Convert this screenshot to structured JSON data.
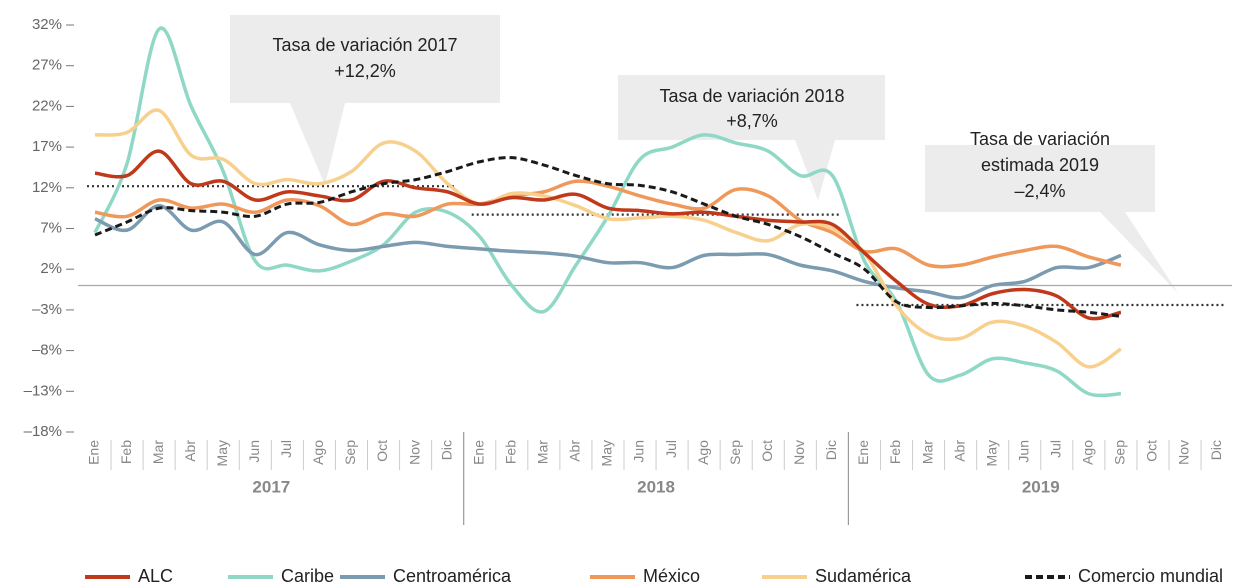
{
  "chart_data": {
    "type": "line",
    "categories": [
      "Ene",
      "Feb",
      "Mar",
      "Abr",
      "May",
      "Jun",
      "Jul",
      "Ago",
      "Sep",
      "Oct",
      "Nov",
      "Dic",
      "Ene",
      "Feb",
      "Mar",
      "Abr",
      "May",
      "Jun",
      "Jul",
      "Ago",
      "Sep",
      "Oct",
      "Nov",
      "Dic",
      "Ene",
      "Feb",
      "Mar",
      "Abr",
      "May",
      "Jun",
      "Jul",
      "Ago",
      "Sep",
      "Oct",
      "Nov",
      "Dic"
    ],
    "years": [
      "2017",
      "2018",
      "2019"
    ],
    "ylim": [
      -18,
      32
    ],
    "yticks": [
      {
        "value": 32,
        "label": "32%"
      },
      {
        "value": 27,
        "label": "27%"
      },
      {
        "value": 22,
        "label": "22%"
      },
      {
        "value": 17,
        "label": "17%"
      },
      {
        "value": 12,
        "label": "12%"
      },
      {
        "value": 7,
        "label": "7%"
      },
      {
        "value": 2,
        "label": "2%"
      },
      {
        "value": -3,
        "label": "–3%"
      },
      {
        "value": -8,
        "label": "–8%"
      },
      {
        "value": -13,
        "label": "–13%"
      },
      {
        "value": -18,
        "label": "–18%"
      }
    ],
    "series": [
      {
        "name": "ALC",
        "color": "#c0391b",
        "values": [
          13.8,
          13.5,
          16.5,
          12.5,
          12.8,
          10.5,
          11.5,
          11,
          10.5,
          12.8,
          12,
          11.5,
          10,
          10.8,
          10.5,
          11.2,
          9.5,
          9.2,
          8.8,
          9,
          8.5,
          8,
          7.8,
          7.5,
          4,
          0.5,
          -2.3,
          -2.5,
          -1,
          -0.5,
          -1.3,
          -4,
          -3.3,
          null,
          null,
          null
        ]
      },
      {
        "name": "Caribe",
        "color": "#8fd8c6",
        "values": [
          6.5,
          15,
          31.5,
          22,
          14,
          3,
          2.5,
          1.8,
          3,
          5,
          9,
          9,
          6,
          0,
          -3.2,
          2.5,
          8.5,
          15.5,
          17,
          18.5,
          17.5,
          16.5,
          13.5,
          13.5,
          3,
          -2,
          -11,
          -11,
          -9,
          -9.5,
          -10.5,
          -13.3,
          -13.3,
          null,
          null,
          null
        ]
      },
      {
        "name": "Centroamérica",
        "color": "#7b9bb0",
        "values": [
          8.2,
          6.8,
          9.8,
          6.8,
          7.8,
          3.8,
          6.5,
          5,
          4.3,
          4.8,
          5.3,
          4.8,
          4.5,
          4.2,
          4,
          3.6,
          2.8,
          2.8,
          2.2,
          3.7,
          3.8,
          3.8,
          2.5,
          1.8,
          0.5,
          -0.3,
          -0.8,
          -1.5,
          0,
          0.5,
          2.2,
          2.2,
          3.7,
          null,
          null,
          null
        ]
      },
      {
        "name": "México",
        "color": "#f0985a",
        "values": [
          9,
          8.5,
          10.5,
          9.5,
          10,
          9,
          10.5,
          9.8,
          7.5,
          8.8,
          8.5,
          10,
          10,
          11,
          11.5,
          12.8,
          12.2,
          11,
          10,
          9.5,
          11.8,
          11,
          8,
          6.5,
          4.2,
          4.5,
          2.5,
          2.5,
          3.5,
          4.3,
          4.8,
          3.5,
          2.5,
          null,
          null,
          null
        ]
      },
      {
        "name": "Sudamérica",
        "color": "#f7d08e",
        "values": [
          18.5,
          18.8,
          21.5,
          16,
          15.5,
          12.5,
          13,
          12.5,
          14,
          17.5,
          16.5,
          12.5,
          10,
          11.3,
          11,
          9.8,
          8.2,
          8.3,
          8.5,
          8,
          6.5,
          5.5,
          7.5,
          7,
          4,
          -2.5,
          -6,
          -6.5,
          -4.5,
          -5,
          -7,
          -10,
          -7.8,
          null,
          null,
          null
        ]
      },
      {
        "name": "Comercio mundial",
        "color": "#1a1a1a",
        "dashed": true,
        "values": [
          6.2,
          7.8,
          9.5,
          9.2,
          9,
          8.5,
          10,
          10.2,
          11.5,
          12.5,
          13,
          14,
          15.2,
          15.7,
          14.8,
          13.5,
          12.5,
          12.3,
          11.5,
          10,
          8.5,
          7.5,
          6,
          4,
          2,
          -2,
          -2.7,
          -2.5,
          -2.2,
          -2.5,
          -3,
          -3.3,
          -3.8,
          null,
          null,
          null
        ]
      }
    ],
    "annotations": [
      {
        "lines": [
          "Tasa de variación 2017",
          "+12,2%"
        ],
        "value": 12.2,
        "from": 0,
        "to": 11
      },
      {
        "lines": [
          "Tasa de variación 2018",
          "+8,7%"
        ],
        "value": 8.7,
        "from": 12,
        "to": 23
      },
      {
        "lines": [
          "Tasa de variación",
          "estimada 2019",
          "–2,4%"
        ],
        "value": -2.4,
        "from": 24,
        "to": 35
      }
    ]
  }
}
